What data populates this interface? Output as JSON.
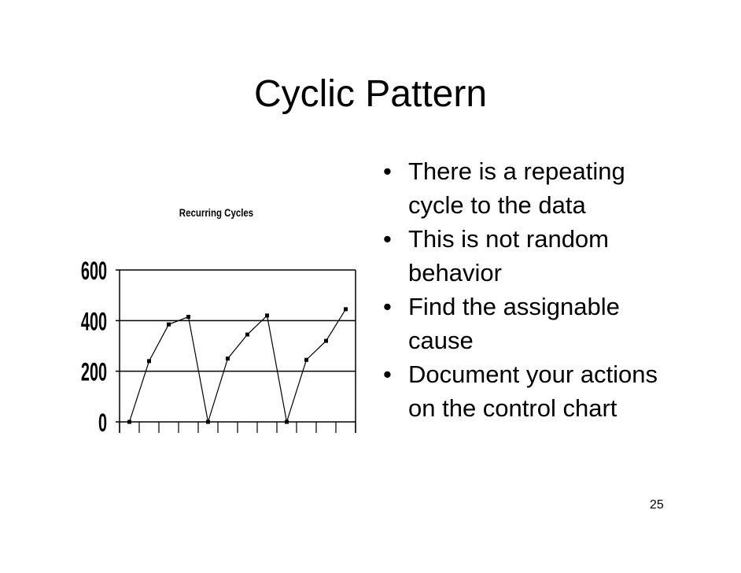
{
  "slide": {
    "title": "Cyclic Pattern",
    "page_number": "25",
    "bullets": [
      "There is a repeating cycle to the data",
      "This is not random behavior",
      "Find the assignable cause",
      "Document your actions on the control chart"
    ]
  },
  "chart_data": {
    "type": "line",
    "title": "Recurring Cycles",
    "xlabel": "",
    "ylabel": "",
    "x": [
      1,
      2,
      3,
      4,
      5,
      6,
      7,
      8,
      9,
      10,
      11,
      12
    ],
    "series": [
      {
        "values": [
          0,
          240,
          385,
          415,
          0,
          250,
          345,
          420,
          0,
          245,
          320,
          445
        ]
      }
    ],
    "ylim": [
      0,
      600
    ],
    "yticks": [
      "0",
      "200",
      "400",
      "600"
    ],
    "grid": true
  }
}
